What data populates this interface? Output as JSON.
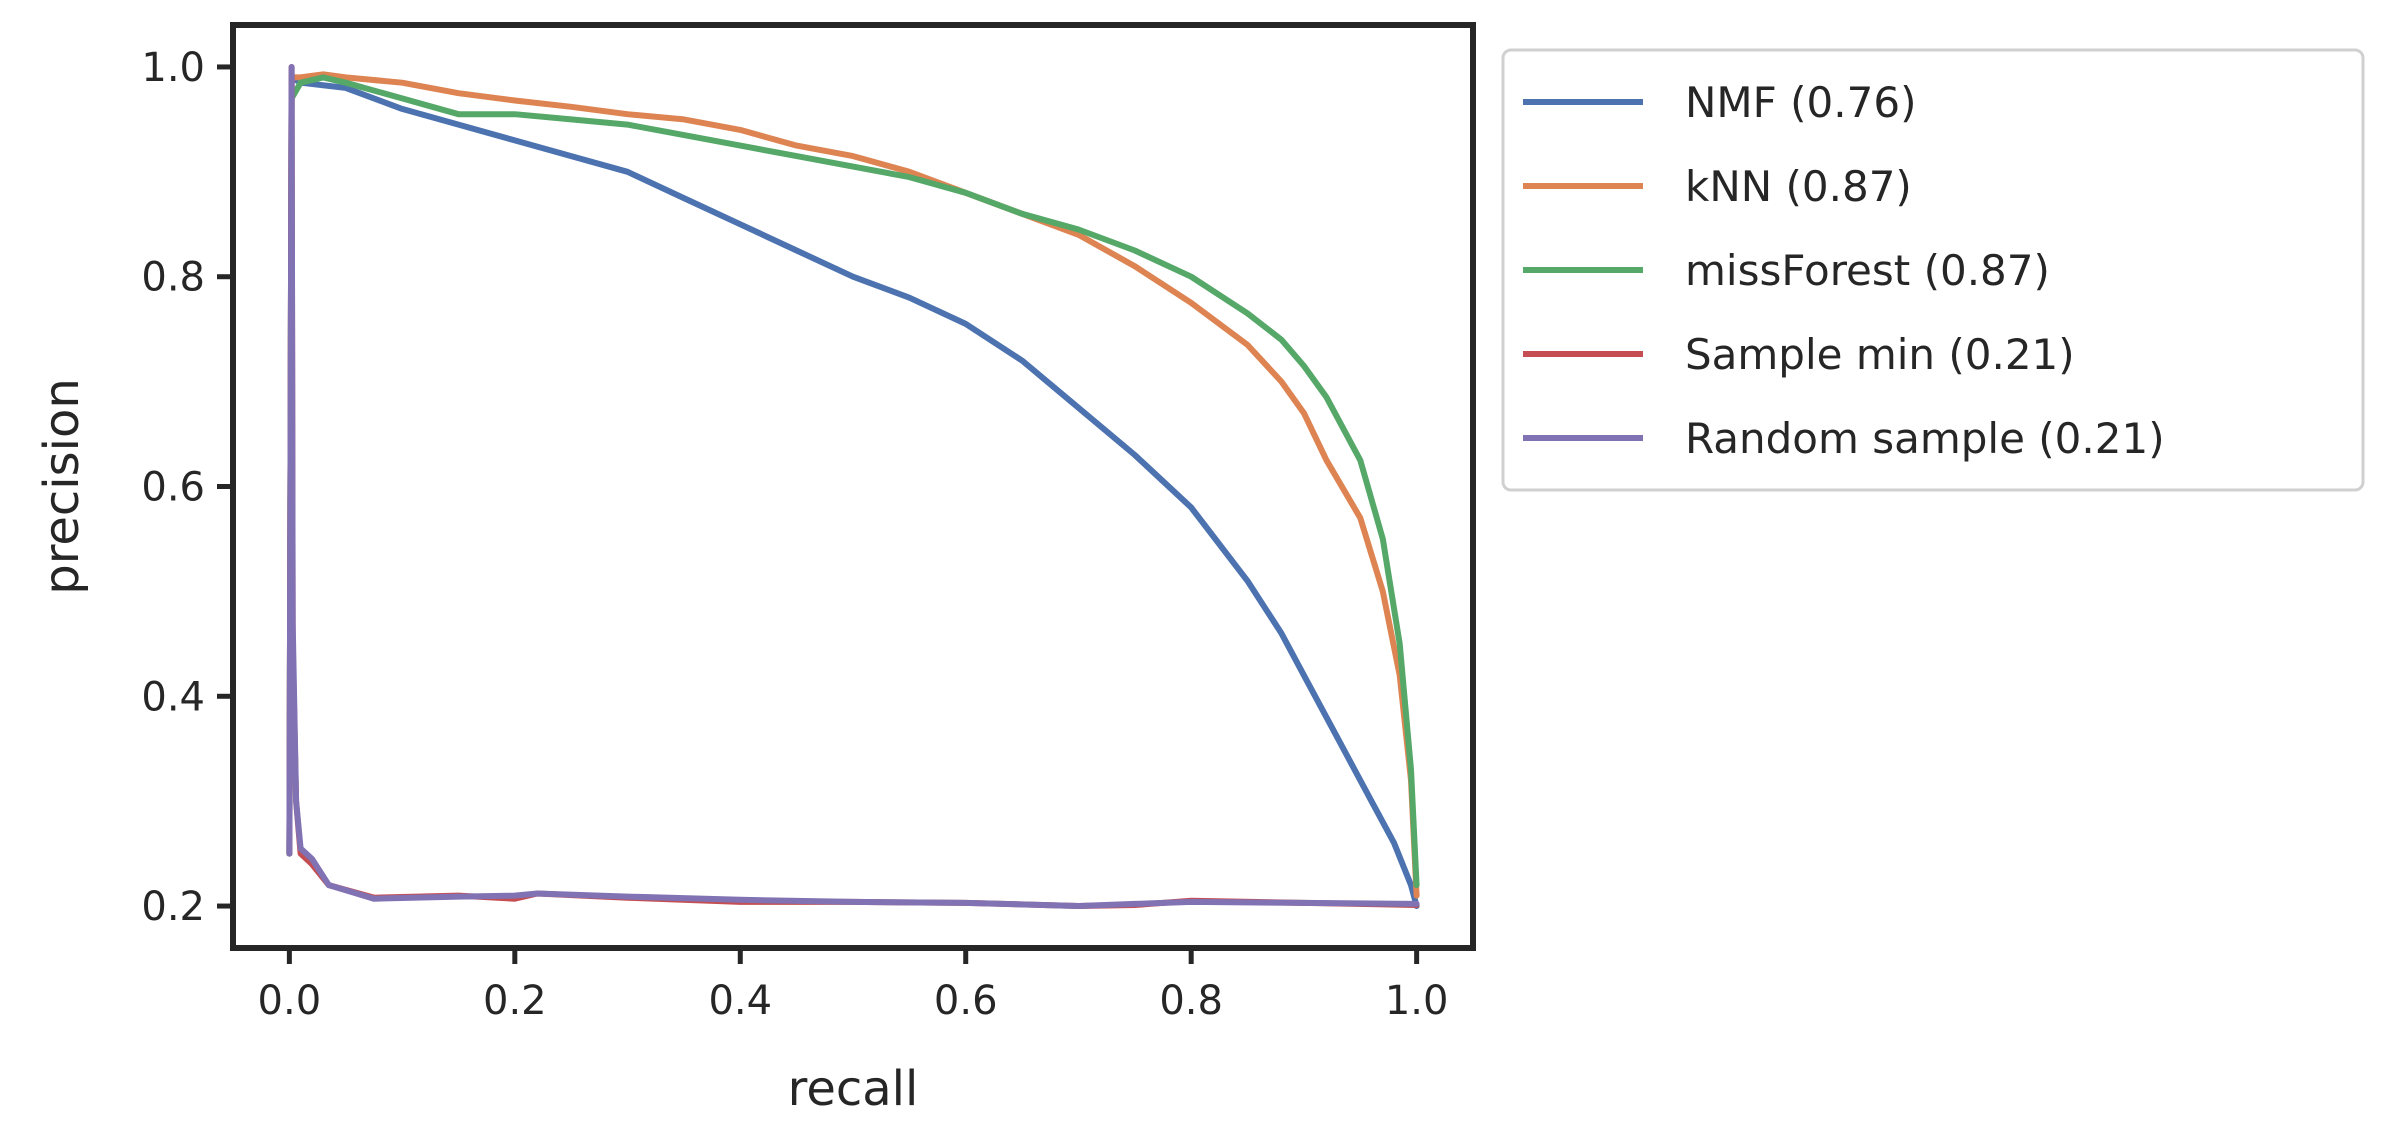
{
  "chart_data": {
    "type": "line",
    "title": "",
    "xlabel": "recall",
    "ylabel": "precision",
    "xlim": [
      -0.05,
      1.05
    ],
    "ylim": [
      0.16,
      1.04
    ],
    "xticks": [
      0.0,
      0.2,
      0.4,
      0.6,
      0.8,
      1.0
    ],
    "xtick_labels": [
      "0.0",
      "0.2",
      "0.4",
      "0.6",
      "0.8",
      "1.0"
    ],
    "yticks": [
      0.2,
      0.4,
      0.6,
      0.8,
      1.0
    ],
    "ytick_labels": [
      "0.2",
      "0.4",
      "0.6",
      "0.8",
      "1.0"
    ],
    "grid": false,
    "legend_position": "outside upper right",
    "series": [
      {
        "name": "NMF (0.76)",
        "color": "#4c72b0",
        "points": [
          [
            0.0,
            0.25
          ],
          [
            0.002,
            0.99
          ],
          [
            0.01,
            0.985
          ],
          [
            0.05,
            0.98
          ],
          [
            0.1,
            0.96
          ],
          [
            0.15,
            0.945
          ],
          [
            0.2,
            0.93
          ],
          [
            0.25,
            0.915
          ],
          [
            0.3,
            0.9
          ],
          [
            0.35,
            0.875
          ],
          [
            0.4,
            0.85
          ],
          [
            0.45,
            0.825
          ],
          [
            0.5,
            0.8
          ],
          [
            0.55,
            0.78
          ],
          [
            0.6,
            0.755
          ],
          [
            0.65,
            0.72
          ],
          [
            0.7,
            0.675
          ],
          [
            0.75,
            0.63
          ],
          [
            0.8,
            0.58
          ],
          [
            0.85,
            0.51
          ],
          [
            0.88,
            0.46
          ],
          [
            0.9,
            0.42
          ],
          [
            0.93,
            0.36
          ],
          [
            0.96,
            0.3
          ],
          [
            0.98,
            0.26
          ],
          [
            0.995,
            0.22
          ],
          [
            1.0,
            0.2
          ]
        ]
      },
      {
        "name": "kNN (0.87)",
        "color": "#dd8452",
        "points": [
          [
            0.0,
            0.25
          ],
          [
            0.002,
            0.99
          ],
          [
            0.01,
            0.99
          ],
          [
            0.03,
            0.993
          ],
          [
            0.05,
            0.99
          ],
          [
            0.1,
            0.985
          ],
          [
            0.15,
            0.975
          ],
          [
            0.2,
            0.968
          ],
          [
            0.25,
            0.962
          ],
          [
            0.3,
            0.955
          ],
          [
            0.35,
            0.95
          ],
          [
            0.4,
            0.94
          ],
          [
            0.45,
            0.925
          ],
          [
            0.5,
            0.915
          ],
          [
            0.55,
            0.9
          ],
          [
            0.6,
            0.88
          ],
          [
            0.65,
            0.86
          ],
          [
            0.7,
            0.84
          ],
          [
            0.75,
            0.81
          ],
          [
            0.8,
            0.775
          ],
          [
            0.85,
            0.735
          ],
          [
            0.88,
            0.7
          ],
          [
            0.9,
            0.67
          ],
          [
            0.92,
            0.625
          ],
          [
            0.95,
            0.57
          ],
          [
            0.97,
            0.5
          ],
          [
            0.985,
            0.42
          ],
          [
            0.995,
            0.32
          ],
          [
            1.0,
            0.21
          ]
        ]
      },
      {
        "name": "missForest (0.87)",
        "color": "#55a868",
        "points": [
          [
            0.0,
            0.25
          ],
          [
            0.002,
            0.97
          ],
          [
            0.01,
            0.985
          ],
          [
            0.03,
            0.99
          ],
          [
            0.05,
            0.985
          ],
          [
            0.1,
            0.97
          ],
          [
            0.15,
            0.955
          ],
          [
            0.2,
            0.955
          ],
          [
            0.25,
            0.95
          ],
          [
            0.3,
            0.945
          ],
          [
            0.35,
            0.935
          ],
          [
            0.4,
            0.925
          ],
          [
            0.45,
            0.915
          ],
          [
            0.5,
            0.905
          ],
          [
            0.55,
            0.895
          ],
          [
            0.6,
            0.88
          ],
          [
            0.65,
            0.86
          ],
          [
            0.7,
            0.845
          ],
          [
            0.75,
            0.825
          ],
          [
            0.8,
            0.8
          ],
          [
            0.85,
            0.765
          ],
          [
            0.88,
            0.74
          ],
          [
            0.9,
            0.715
          ],
          [
            0.92,
            0.685
          ],
          [
            0.95,
            0.625
          ],
          [
            0.97,
            0.55
          ],
          [
            0.985,
            0.45
          ],
          [
            0.995,
            0.33
          ],
          [
            1.0,
            0.22
          ]
        ]
      },
      {
        "name": "Sample min (0.21)",
        "color": "#c44e52",
        "points": [
          [
            0.0,
            0.25
          ],
          [
            0.002,
            1.0
          ],
          [
            0.003,
            0.45
          ],
          [
            0.006,
            0.3
          ],
          [
            0.01,
            0.25
          ],
          [
            0.02,
            0.24
          ],
          [
            0.035,
            0.22
          ],
          [
            0.075,
            0.208
          ],
          [
            0.15,
            0.21
          ],
          [
            0.2,
            0.207
          ],
          [
            0.22,
            0.212
          ],
          [
            0.3,
            0.208
          ],
          [
            0.4,
            0.204
          ],
          [
            0.5,
            0.204
          ],
          [
            0.6,
            0.203
          ],
          [
            0.7,
            0.2
          ],
          [
            0.75,
            0.201
          ],
          [
            0.8,
            0.205
          ],
          [
            0.9,
            0.203
          ],
          [
            1.0,
            0.201
          ]
        ]
      },
      {
        "name": "Random sample (0.21)",
        "color": "#8172b3",
        "points": [
          [
            0.0,
            0.25
          ],
          [
            0.002,
            1.0
          ],
          [
            0.003,
            0.47
          ],
          [
            0.006,
            0.3
          ],
          [
            0.01,
            0.255
          ],
          [
            0.02,
            0.245
          ],
          [
            0.035,
            0.22
          ],
          [
            0.075,
            0.207
          ],
          [
            0.15,
            0.209
          ],
          [
            0.2,
            0.21
          ],
          [
            0.22,
            0.212
          ],
          [
            0.3,
            0.209
          ],
          [
            0.4,
            0.206
          ],
          [
            0.5,
            0.204
          ],
          [
            0.6,
            0.203
          ],
          [
            0.7,
            0.2
          ],
          [
            0.75,
            0.202
          ],
          [
            0.8,
            0.204
          ],
          [
            0.9,
            0.203
          ],
          [
            1.0,
            0.202
          ]
        ]
      }
    ]
  }
}
